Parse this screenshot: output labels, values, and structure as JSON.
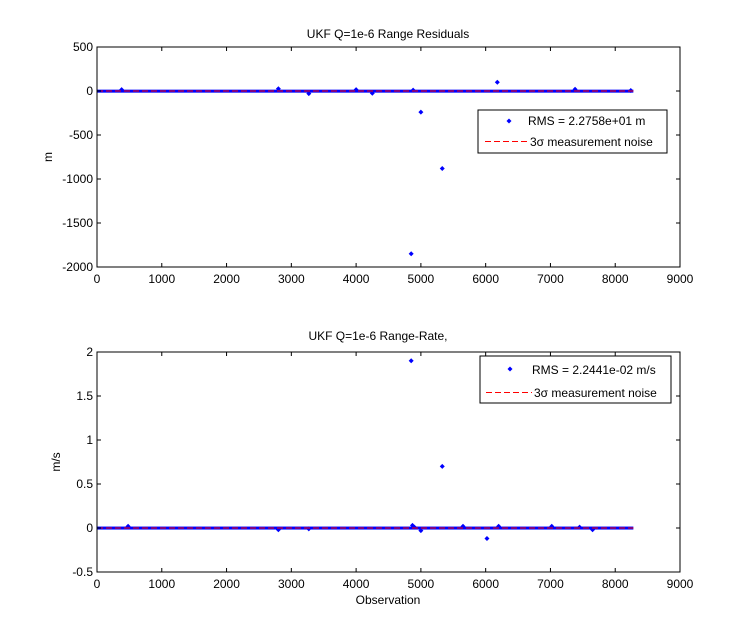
{
  "colors": {
    "series": "#0000ff",
    "noise": "#ff0000",
    "axes": "#000000",
    "background": "#ffffff"
  },
  "chart_data": [
    {
      "type": "scatter",
      "title": "UKF Q=1e-6 Range Residuals",
      "xlabel": "",
      "ylabel": "m",
      "xlim": [
        0,
        9000
      ],
      "ylim": [
        -2000,
        500
      ],
      "xticks": [
        "0",
        "1000",
        "2000",
        "3000",
        "4000",
        "5000",
        "6000",
        "7000",
        "8000",
        "9000"
      ],
      "yticks": [
        "500",
        "0",
        "-500",
        "-1000",
        "-1500",
        "-2000"
      ],
      "grid": false,
      "legend_position": "top-right",
      "series": [
        {
          "name": "RMS = 2.2758e+01 m",
          "marker": "dot",
          "band": {
            "x_range": [
              0,
              8280
            ],
            "y_range": [
              -4,
              4
            ]
          },
          "x": [
            380,
            2800,
            3270,
            4000,
            4250,
            4850,
            4880,
            5000,
            5330,
            6180,
            7380,
            8240
          ],
          "y": [
            15,
            25,
            -30,
            15,
            -25,
            -1850,
            10,
            -240,
            -880,
            100,
            20,
            5
          ]
        },
        {
          "name": "3σ measurement noise",
          "style": "dashed-line",
          "x": [
            0,
            8280
          ],
          "y": [
            0,
            0
          ]
        }
      ]
    },
    {
      "type": "scatter",
      "title": "UKF Q=1e-6 Range-Rate,",
      "xlabel": "Observation",
      "ylabel": "m/s",
      "xlim": [
        0,
        9000
      ],
      "ylim": [
        -0.5,
        2
      ],
      "xticks": [
        "0",
        "1000",
        "2000",
        "3000",
        "4000",
        "5000",
        "6000",
        "7000",
        "8000",
        "9000"
      ],
      "yticks": [
        "2",
        "1.5",
        "1",
        "0.5",
        "0",
        "-0.5"
      ],
      "grid": false,
      "legend_position": "top-right",
      "series": [
        {
          "name": "RMS = 2.2441e-02 m/s",
          "marker": "dot",
          "band": {
            "x_range": [
              0,
              8280
            ],
            "y_range": [
              -0.005,
              0.005
            ]
          },
          "x": [
            480,
            2800,
            3270,
            4850,
            4870,
            4900,
            5000,
            5330,
            5650,
            6020,
            6200,
            7020,
            7450,
            7650
          ],
          "y": [
            0.02,
            -0.02,
            -0.01,
            1.9,
            0.03,
            0.01,
            -0.03,
            0.7,
            0.02,
            -0.12,
            0.02,
            0.02,
            0.01,
            -0.02
          ]
        },
        {
          "name": "3σ measurement noise",
          "style": "dashed-line",
          "x": [
            0,
            8280
          ],
          "y": [
            0,
            0
          ]
        }
      ]
    }
  ]
}
